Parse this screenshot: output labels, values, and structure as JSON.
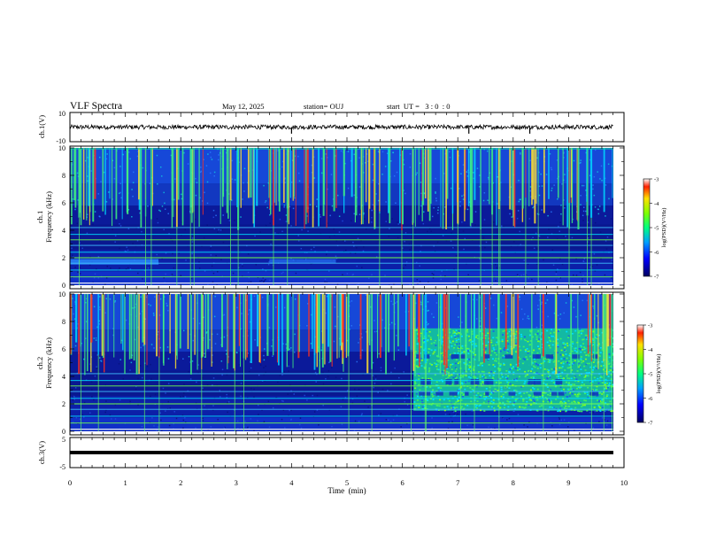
{
  "header": {
    "title": "VLF Spectra",
    "date": "May 12, 2025",
    "station": "station= OUJ",
    "start_ut": "start  UT =   3 : 0  : 0"
  },
  "colors": {
    "background": "#ffffff",
    "frame": "#000000",
    "waveform": "#000000",
    "spectrogram_dark": "#0a0a80",
    "spectrogram_mid": "#2f6cff",
    "spectrogram_high": "#00e070",
    "spectrogram_peak": "#ff2010"
  },
  "chart_data": [
    {
      "type": "line",
      "panel": "ch1-waveform",
      "ylabel": "ch.1(V)",
      "ylim": [
        -10,
        10
      ],
      "yticks": [
        "10",
        "-10"
      ],
      "xlim": [
        0,
        10
      ],
      "description_values": {
        "baseline": 0,
        "noise_amplitude": 1.5,
        "spike_times_min": [
          4.0,
          7.2,
          8.3
        ]
      }
    },
    {
      "type": "heatmap",
      "panel": "ch1-spectrogram",
      "ylabel": "ch.1\nFrequency (kHz)",
      "ylabel_lines": [
        "ch.1",
        "Frequency (kHz)"
      ],
      "ylim": [
        0,
        10
      ],
      "yticks": [
        "0",
        "2",
        "4",
        "6",
        "8",
        "10"
      ],
      "xlim": [
        0,
        9.8
      ],
      "colorbar": {
        "label": "log(PSD)(V²/Hz)",
        "range": [
          -7,
          -3
        ],
        "ticks": [
          "-3",
          "-4",
          "-5",
          "-6",
          "-7"
        ]
      },
      "narrowband_lines_khz": [
        0.6,
        1.1,
        1.6,
        2.0,
        2.4,
        2.9,
        3.3,
        3.7,
        4.2
      ],
      "noise_band_khz": [
        1.5,
        1.9
      ],
      "noise_band_time_min": [
        0,
        1.6
      ],
      "sferic_activity": "dense broadband impulses 4-10 kHz throughout"
    },
    {
      "type": "heatmap",
      "panel": "ch2-spectrogram",
      "ylabel_lines": [
        "ch.2",
        "Frequency (kHz)"
      ],
      "ylim": [
        0,
        10
      ],
      "yticks": [
        "0",
        "2",
        "4",
        "6",
        "8",
        "10"
      ],
      "xlim": [
        0,
        9.8
      ],
      "colorbar": {
        "label": "log(PSD)(V²/Hz)",
        "range": [
          -7,
          -3
        ],
        "ticks": [
          "-3",
          "-4",
          "-5",
          "-6",
          "-7"
        ]
      },
      "enhanced_emission": {
        "time_min": [
          6.2,
          9.8
        ],
        "freq_khz": [
          1.5,
          7.5
        ]
      },
      "narrowband_lines_khz": [
        0.6,
        1.1,
        1.6,
        2.0,
        2.4,
        2.9,
        3.3,
        3.7,
        4.2
      ]
    },
    {
      "type": "line",
      "panel": "ch3-waveform",
      "ylabel": "ch.3(V)",
      "ylim": [
        -5,
        5
      ],
      "yticks": [
        "5",
        "-5"
      ],
      "xlim": [
        0,
        10
      ],
      "xlabel": "Time  (min)",
      "xticks": [
        "0",
        "1",
        "2",
        "3",
        "4",
        "5",
        "6",
        "7",
        "8",
        "9",
        "10"
      ],
      "description_values": {
        "constant_level": -2
      }
    }
  ]
}
